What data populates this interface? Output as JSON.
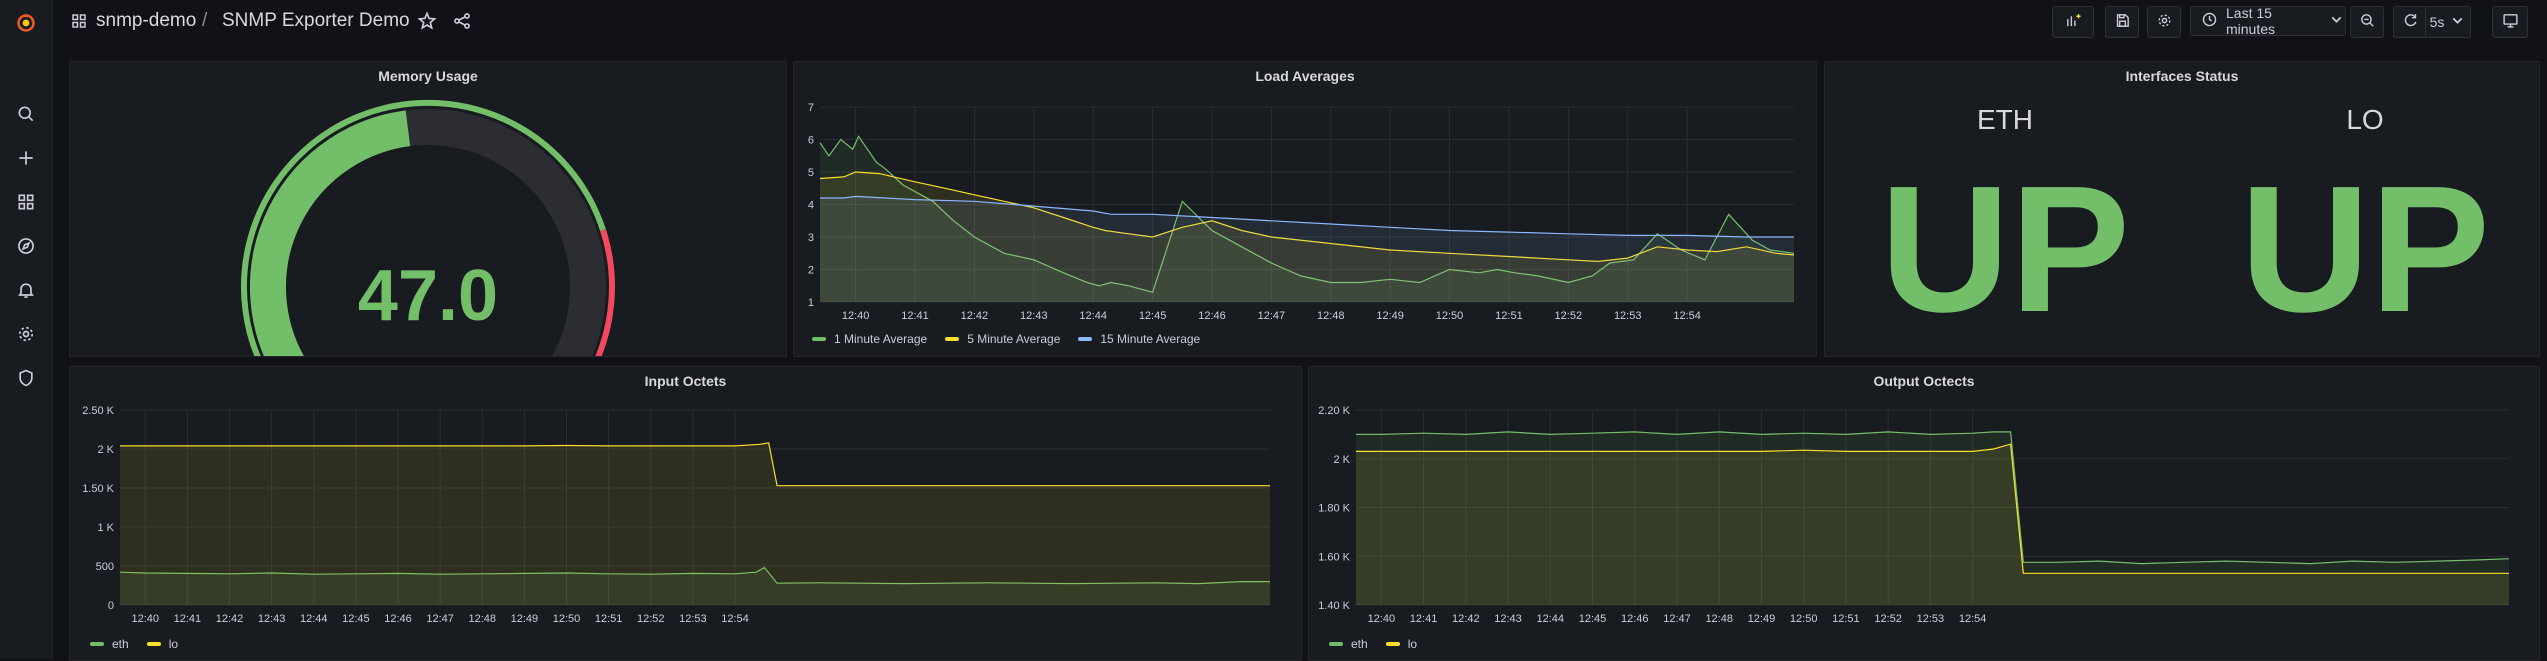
{
  "breadcrumb": {
    "folder": "snmp-demo",
    "separator": "/",
    "dashboard": "SNMP Exporter Demo"
  },
  "toolbar": {
    "time_range": "Last 15 minutes",
    "refresh_interval": "5s"
  },
  "colors": {
    "green": "#73bf69",
    "yellow": "#fade2a",
    "blue": "#8ab8ff",
    "red": "#f2495c"
  },
  "memory": {
    "title": "Memory Usage",
    "value": "47.0",
    "percent": 47
  },
  "interfaces": {
    "title": "Interfaces Status",
    "items": [
      {
        "label": "ETH",
        "value": "UP"
      },
      {
        "label": "LO",
        "value": "UP"
      }
    ]
  },
  "chart_data": [
    {
      "id": "load",
      "type": "line",
      "title": "Load Averages",
      "ylim": [
        1,
        7
      ],
      "yticks": [
        "1",
        "2",
        "3",
        "4",
        "5",
        "6",
        "7"
      ],
      "xticks": [
        "12:40",
        "12:41",
        "12:42",
        "12:43",
        "12:44",
        "12:45",
        "12:46",
        "12:47",
        "12:48",
        "12:49",
        "12:50",
        "12:51",
        "12:52",
        "12:53",
        "12:54"
      ],
      "series": [
        {
          "name": "1 Minute Average",
          "color": "#73bf69",
          "x": [
            12.4,
            12.55,
            12.75,
            12.95,
            13.05,
            13.35,
            13.5,
            13.8,
            14.3,
            14.65,
            15.0,
            15.5,
            16.0,
            16.5,
            16.9,
            17.1,
            17.3,
            17.6,
            18.0,
            18.5,
            19.0,
            19.5,
            20.0,
            20.5,
            21.0,
            21.5,
            22.0,
            22.5,
            23.0,
            23.5,
            23.8,
            24.1,
            24.5,
            25.0,
            25.4,
            25.7,
            26.1,
            26.5,
            26.9,
            27.3,
            27.7,
            28.1,
            28.4,
            28.8
          ],
          "y": [
            5.9,
            5.5,
            6.0,
            5.7,
            6.1,
            5.3,
            5.1,
            4.6,
            4.1,
            3.5,
            3.0,
            2.5,
            2.3,
            1.9,
            1.6,
            1.5,
            1.6,
            1.5,
            1.3,
            4.1,
            3.2,
            2.7,
            2.2,
            1.8,
            1.6,
            1.6,
            1.7,
            1.6,
            2.0,
            1.9,
            2.0,
            1.9,
            1.8,
            1.6,
            1.8,
            2.2,
            2.3,
            3.1,
            2.6,
            2.3,
            3.7,
            2.9,
            2.6,
            2.5
          ]
        },
        {
          "name": "5 Minute Average",
          "color": "#fade2a",
          "x": [
            12.4,
            12.8,
            13.0,
            13.4,
            14.0,
            14.5,
            15.0,
            15.5,
            16.0,
            16.5,
            17.0,
            17.2,
            17.6,
            18.0,
            18.5,
            19.0,
            19.5,
            20.0,
            21.0,
            22.0,
            23.0,
            24.0,
            25.0,
            25.5,
            26.0,
            26.5,
            27.0,
            27.5,
            28.0,
            28.5,
            28.8
          ],
          "y": [
            4.8,
            4.85,
            5.0,
            4.95,
            4.7,
            4.5,
            4.3,
            4.1,
            3.9,
            3.6,
            3.3,
            3.2,
            3.1,
            3.0,
            3.3,
            3.5,
            3.2,
            3.0,
            2.8,
            2.6,
            2.5,
            2.4,
            2.3,
            2.25,
            2.35,
            2.7,
            2.6,
            2.55,
            2.7,
            2.5,
            2.45
          ]
        },
        {
          "name": "15 Minute Average",
          "color": "#8ab8ff",
          "x": [
            12.4,
            12.8,
            13.0,
            13.5,
            14.0,
            15.0,
            16.0,
            17.0,
            17.3,
            18.0,
            19.0,
            20.0,
            21.0,
            22.0,
            23.0,
            24.0,
            25.0,
            26.0,
            27.0,
            28.0,
            28.8
          ],
          "y": [
            4.2,
            4.2,
            4.25,
            4.2,
            4.15,
            4.1,
            3.95,
            3.8,
            3.7,
            3.7,
            3.6,
            3.5,
            3.4,
            3.3,
            3.2,
            3.15,
            3.1,
            3.05,
            3.05,
            3.0,
            3.0
          ]
        }
      ]
    },
    {
      "id": "input",
      "type": "area",
      "title": "Input Octets",
      "ylim": [
        0,
        2500
      ],
      "yticks": [
        "0",
        "500",
        "1 K",
        "1.50 K",
        "2 K",
        "2.50 K"
      ],
      "xticks": [
        "12:40",
        "12:41",
        "12:42",
        "12:43",
        "12:44",
        "12:45",
        "12:46",
        "12:47",
        "12:48",
        "12:49",
        "12:50",
        "12:51",
        "12:52",
        "12:53",
        "12:54"
      ],
      "series": [
        {
          "name": "eth",
          "color": "#73bf69",
          "x": [
            12.4,
            13.0,
            14.0,
            15.0,
            16.0,
            17.0,
            18.0,
            19.0,
            20.0,
            21.0,
            22.0,
            23.0,
            24.0,
            25.0,
            26.0,
            27.0,
            27.5,
            27.7,
            28.0,
            29.0,
            30.0,
            31.0,
            32.0,
            33.0,
            34.0,
            35.0,
            36.0,
            37.0,
            38.0,
            39.0,
            39.7
          ],
          "y": [
            420,
            410,
            405,
            400,
            410,
            395,
            400,
            405,
            395,
            400,
            405,
            410,
            400,
            395,
            405,
            400,
            420,
            480,
            280,
            285,
            280,
            275,
            280,
            285,
            280,
            275,
            280,
            285,
            275,
            300,
            300
          ]
        },
        {
          "name": "lo",
          "color": "#fade2a",
          "x": [
            12.4,
            13.0,
            14.0,
            15.0,
            16.0,
            17.0,
            18.0,
            19.0,
            20.0,
            21.0,
            22.0,
            23.0,
            24.0,
            25.0,
            26.0,
            27.0,
            27.6,
            27.8,
            28.0,
            29.0,
            30.0,
            31.0,
            32.0,
            33.0,
            34.0,
            35.0,
            36.0,
            37.0,
            38.0,
            39.0,
            39.7
          ],
          "y": [
            2040,
            2040,
            2040,
            2040,
            2040,
            2040,
            2040,
            2040,
            2040,
            2040,
            2040,
            2045,
            2040,
            2040,
            2040,
            2040,
            2060,
            2080,
            1530,
            1530,
            1530,
            1530,
            1530,
            1530,
            1530,
            1530,
            1530,
            1530,
            1530,
            1530,
            1530
          ]
        }
      ]
    },
    {
      "id": "output",
      "type": "area",
      "title": "Output Octects",
      "ylim": [
        1400,
        2200
      ],
      "yticks": [
        "1.40 K",
        "1.60 K",
        "1.80 K",
        "2 K",
        "2.20 K"
      ],
      "xticks": [
        "12:40",
        "12:41",
        "12:42",
        "12:43",
        "12:44",
        "12:45",
        "12:46",
        "12:47",
        "12:48",
        "12:49",
        "12:50",
        "12:51",
        "12:52",
        "12:53",
        "12:54"
      ],
      "series": [
        {
          "name": "eth",
          "color": "#73bf69",
          "x": [
            12.4,
            13.0,
            14.0,
            15.0,
            16.0,
            17.0,
            18.0,
            19.0,
            20.0,
            21.0,
            22.0,
            23.0,
            24.0,
            25.0,
            26.0,
            27.0,
            27.5,
            27.9,
            28.2,
            29.0,
            30.0,
            31.0,
            32.0,
            33.0,
            34.0,
            35.0,
            36.0,
            37.0,
            38.0,
            39.0,
            39.7
          ],
          "y": [
            2100,
            2100,
            2105,
            2100,
            2110,
            2100,
            2105,
            2110,
            2100,
            2110,
            2100,
            2105,
            2100,
            2110,
            2100,
            2105,
            2110,
            2110,
            1575,
            1575,
            1580,
            1570,
            1575,
            1580,
            1575,
            1570,
            1580,
            1575,
            1580,
            1585,
            1590
          ]
        },
        {
          "name": "lo",
          "color": "#fade2a",
          "x": [
            12.4,
            13.0,
            14.0,
            15.0,
            16.0,
            17.0,
            18.0,
            19.0,
            20.0,
            21.0,
            22.0,
            23.0,
            24.0,
            25.0,
            26.0,
            27.0,
            27.5,
            27.9,
            28.2,
            29.0,
            30.0,
            31.0,
            32.0,
            33.0,
            34.0,
            35.0,
            36.0,
            37.0,
            38.0,
            39.0,
            39.7
          ],
          "y": [
            2030,
            2030,
            2030,
            2030,
            2030,
            2030,
            2030,
            2030,
            2030,
            2030,
            2030,
            2035,
            2030,
            2030,
            2030,
            2030,
            2040,
            2060,
            1530,
            1530,
            1530,
            1530,
            1530,
            1530,
            1530,
            1530,
            1530,
            1530,
            1530,
            1530,
            1530
          ]
        }
      ]
    }
  ]
}
